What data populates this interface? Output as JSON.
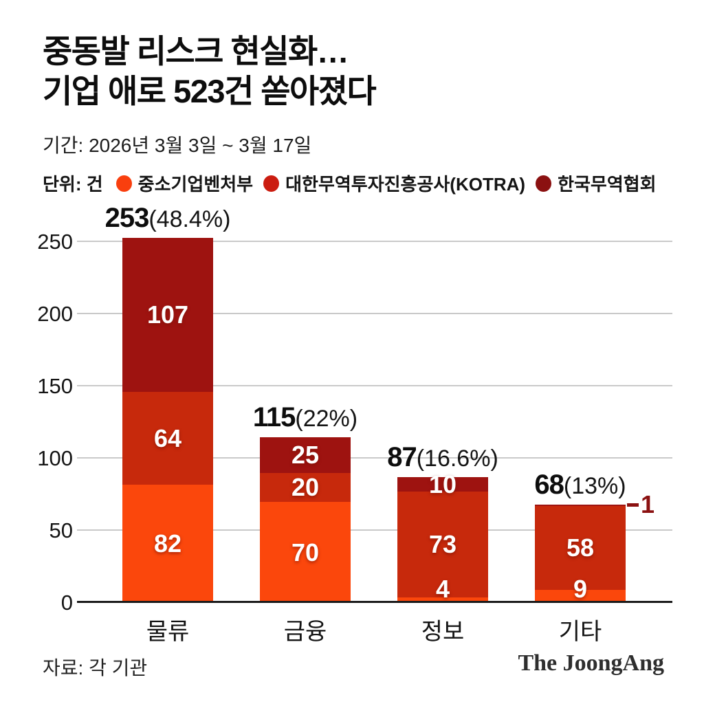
{
  "header": {
    "title_line1": "중동발 리스크 현실화…",
    "title_line2": "기업 애로 523건 쏟아졌다",
    "period": "기간: 2026년 3월 3일 ~ 3월 17일"
  },
  "legend": {
    "unit_label": "단위: 건",
    "items": [
      {
        "label": "중소기업벤처부",
        "color": "#f93f0e"
      },
      {
        "label": "대한무역투자진흥공사(KOTRA)",
        "color": "#cb1c10"
      },
      {
        "label": "한국무역협회",
        "color": "#8b1111"
      }
    ]
  },
  "chart_data": {
    "type": "bar",
    "stacked": true,
    "grid": true,
    "legend_position": "top",
    "categories": [
      "물류",
      "금융",
      "정보",
      "기타"
    ],
    "series": [
      {
        "name": "중소기업벤처부",
        "color": "#fb470c",
        "values": [
          82,
          70,
          4,
          9
        ]
      },
      {
        "name": "대한무역투자진흥공사(KOTRA)",
        "color": "#c7290c",
        "values": [
          64,
          20,
          73,
          58
        ]
      },
      {
        "name": "한국무역협회",
        "color": "#9e1310",
        "values": [
          107,
          25,
          10,
          1
        ]
      }
    ],
    "totals": [
      {
        "value": "253",
        "percent": "(48.4%)"
      },
      {
        "value": "115",
        "percent": "(22%)"
      },
      {
        "value": "87",
        "percent": "(16.6%)"
      },
      {
        "value": "68",
        "percent": "(13%)"
      }
    ],
    "yaxis": {
      "ticks": [
        0,
        50,
        100,
        150,
        200,
        250
      ],
      "max": 250
    },
    "outside_labels": [
      {
        "category_index": 3,
        "series_index": 2,
        "text": "1",
        "color": "#8b1111"
      }
    ]
  },
  "footer": {
    "source": "자료: 각 기관",
    "logo": "The JoongAng"
  }
}
